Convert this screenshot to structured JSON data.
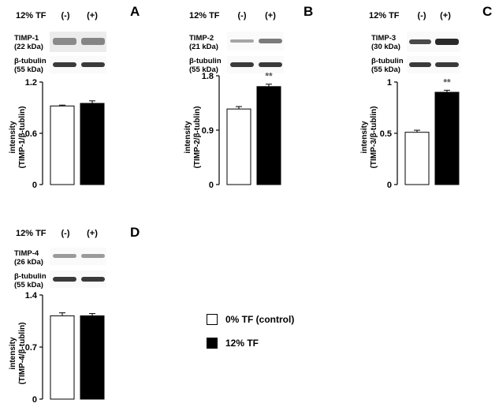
{
  "header": {
    "label": "12% TF",
    "lane_minus": "(-)",
    "lane_plus": "(+)"
  },
  "panels": [
    {
      "letter": "A",
      "protein": "TIMP-1",
      "protein_kda": "(22 kDa)",
      "control_band": "β-tubulin",
      "control_kda": "(55 kDa)",
      "ylabel_line1": "intensity",
      "ylabel_line2": "(TIMP-1/β-tublin)",
      "significance": ""
    },
    {
      "letter": "B",
      "protein": "TIMP-2",
      "protein_kda": "(21 kDa)",
      "control_band": "β-tubulin",
      "control_kda": "(55 kDa)",
      "ylabel_line1": "intensity",
      "ylabel_line2": "(TIMP-2/β-tublin)",
      "significance": "**"
    },
    {
      "letter": "C",
      "protein": "TIMP-3",
      "protein_kda": "(30 kDa)",
      "control_band": "β-tubulin",
      "control_kda": "(55 kDa)",
      "ylabel_line1": "intensity",
      "ylabel_line2": "(TIMP-3/β-tublin)",
      "significance": "**"
    },
    {
      "letter": "D",
      "protein": "TIMP-4",
      "protein_kda": "(26 kDa)",
      "control_band": "β-tubulin",
      "control_kda": "(55 kDa)",
      "ylabel_line1": "intensity",
      "ylabel_line2": "(TIMP-4/β-tublin)",
      "significance": ""
    }
  ],
  "legend": {
    "control_label": "0% TF (control)",
    "treated_label": "12% TF"
  },
  "colors": {
    "control": "#ffffff",
    "treated": "#000000",
    "band": "#555555"
  },
  "chart_data": [
    {
      "type": "bar",
      "categories": [
        "0% TF (control)",
        "12% TF"
      ],
      "values": [
        0.92,
        0.95
      ],
      "errors": [
        0.01,
        0.03
      ],
      "ylim": [
        0,
        1.2
      ],
      "yticks": [
        "0",
        "0.6",
        "1.2"
      ],
      "ytick_values": [
        0,
        0.6,
        1.2
      ]
    },
    {
      "type": "bar",
      "categories": [
        "0% TF (control)",
        "12% TF"
      ],
      "values": [
        1.25,
        1.62
      ],
      "errors": [
        0.04,
        0.04
      ],
      "ylim": [
        0,
        1.8
      ],
      "yticks": [
        "0",
        "0.9",
        "1.8"
      ],
      "ytick_values": [
        0,
        0.9,
        1.8
      ]
    },
    {
      "type": "bar",
      "categories": [
        "0% TF (control)",
        "12% TF"
      ],
      "values": [
        0.51,
        0.9
      ],
      "errors": [
        0.02,
        0.02
      ],
      "ylim": [
        0,
        1
      ],
      "yticks": [
        "0",
        "0.5",
        "1"
      ],
      "ytick_values": [
        0,
        0.5,
        1
      ]
    },
    {
      "type": "bar",
      "categories": [
        "0% TF (control)",
        "12% TF"
      ],
      "values": [
        1.12,
        1.12
      ],
      "errors": [
        0.04,
        0.03
      ],
      "ylim": [
        0,
        1.4
      ],
      "yticks": [
        "0",
        "0.7",
        "1.4"
      ],
      "ytick_values": [
        0,
        0.7,
        1.4
      ]
    }
  ]
}
